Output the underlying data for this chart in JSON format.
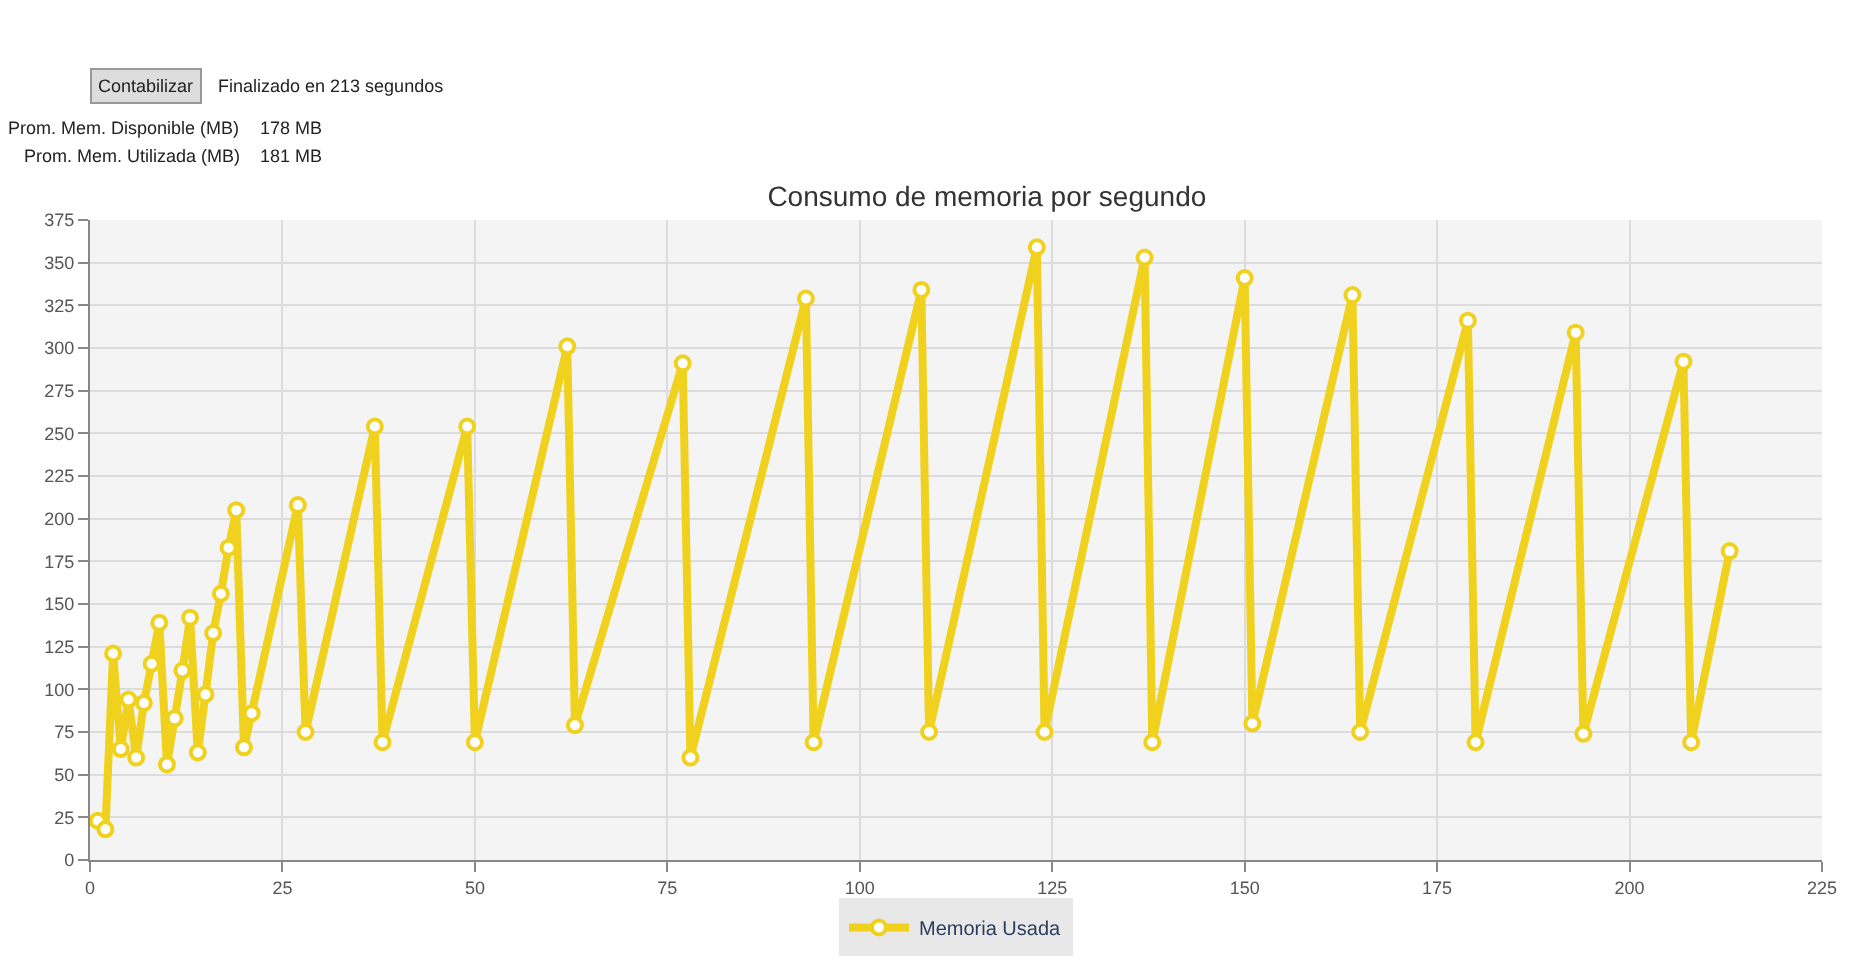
{
  "chart_data": {
    "type": "line",
    "title": "Consumo de memoria por segundo",
    "annotations": [
      "Contabilizar",
      "Finalizado en 213 segundos",
      "Prom. Mem. Disponible (MB)",
      "178 MB",
      "Prom. Mem. Utilizada (MB)",
      "181 MB"
    ],
    "x": [
      1,
      2,
      3,
      4,
      5,
      6,
      7,
      8,
      9,
      10,
      11,
      12,
      13,
      14,
      15,
      16,
      17,
      18,
      19,
      20,
      21,
      27,
      28,
      37,
      38,
      49,
      50,
      62,
      63,
      77,
      78,
      93,
      94,
      108,
      109,
      123,
      124,
      137,
      138,
      150,
      151,
      164,
      165,
      179,
      180,
      193,
      194,
      207,
      208,
      213
    ],
    "series": [
      {
        "name": "Memoria Usada",
        "color": "#f0d21e",
        "values": [
          23,
          18,
          121,
          65,
          94,
          60,
          92,
          115,
          139,
          56,
          83,
          111,
          142,
          63,
          97,
          133,
          156,
          183,
          205,
          66,
          86,
          208,
          75,
          254,
          69,
          254,
          69,
          301,
          79,
          291,
          60,
          329,
          69,
          334,
          75,
          359,
          75,
          353,
          69,
          341,
          80,
          331,
          75,
          316,
          69,
          309,
          74,
          292,
          69,
          181
        ]
      }
    ],
    "xlim": [
      0,
      225
    ],
    "xticks": [
      0,
      25,
      50,
      75,
      100,
      125,
      150,
      175,
      200,
      225
    ],
    "ylim": [
      0,
      375
    ],
    "yticks": [
      0,
      25,
      50,
      75,
      100,
      125,
      150,
      175,
      200,
      225,
      250,
      275,
      300,
      325,
      350,
      375
    ],
    "grid": true,
    "legend": "bottom",
    "marker": "circle",
    "line_style": "solid"
  }
}
